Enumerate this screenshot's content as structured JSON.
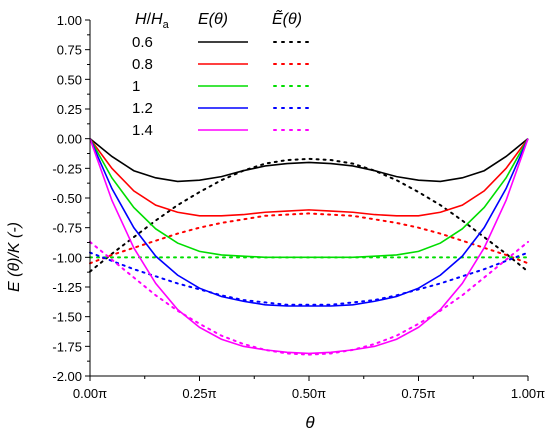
{
  "chart_data": {
    "type": "line",
    "xlabel": "θ",
    "ylabel": "E (θ)/K (-)",
    "xlim": [
      0,
      1
    ],
    "ylim": [
      -2.0,
      1.0
    ],
    "x_ticks": [
      0,
      0.25,
      0.5,
      0.75,
      1.0
    ],
    "x_tick_labels": [
      "0.00π",
      "0.25π",
      "0.50π",
      "0.75π",
      "1.00π"
    ],
    "y_ticks": [
      1.0,
      0.75,
      0.5,
      0.25,
      0.0,
      -0.25,
      -0.5,
      -0.75,
      -1.0,
      -1.25,
      -1.5,
      -1.75,
      -2.0
    ],
    "y_tick_labels": [
      "1.00",
      "0.75",
      "0.50",
      "0.25",
      "0.00",
      "-0.25",
      "-0.50",
      "-0.75",
      "-1.00",
      "-1.25",
      "-1.50",
      "-1.75",
      "-2.00"
    ],
    "legend": {
      "position": "top-left",
      "header_param": "H/Ha",
      "header_solid": "E(θ)",
      "header_dotted": "Ẽ(θ)"
    },
    "x": [
      0.0,
      0.05,
      0.1,
      0.15,
      0.2,
      0.25,
      0.3,
      0.35,
      0.4,
      0.45,
      0.5,
      0.55,
      0.6,
      0.65,
      0.7,
      0.75,
      0.8,
      0.85,
      0.9,
      0.95,
      1.0
    ],
    "series": [
      {
        "name": "0.6",
        "color": "#000000",
        "solid": [
          0.0,
          -0.15,
          -0.27,
          -0.33,
          -0.36,
          -0.35,
          -0.32,
          -0.27,
          -0.23,
          -0.21,
          -0.2,
          -0.21,
          -0.23,
          -0.27,
          -0.32,
          -0.35,
          -0.36,
          -0.33,
          -0.27,
          -0.15,
          0.0
        ],
        "dotted": [
          -1.12,
          -0.97,
          -0.83,
          -0.69,
          -0.56,
          -0.45,
          -0.35,
          -0.27,
          -0.21,
          -0.18,
          -0.17,
          -0.18,
          -0.21,
          -0.27,
          -0.35,
          -0.45,
          -0.56,
          -0.69,
          -0.83,
          -0.97,
          -1.12
        ]
      },
      {
        "name": "0.8",
        "color": "#ff0000",
        "solid": [
          0.0,
          -0.25,
          -0.44,
          -0.56,
          -0.62,
          -0.65,
          -0.65,
          -0.64,
          -0.62,
          -0.61,
          -0.6,
          -0.61,
          -0.62,
          -0.64,
          -0.65,
          -0.65,
          -0.62,
          -0.56,
          -0.44,
          -0.25,
          0.0
        ],
        "dotted": [
          -1.05,
          -0.98,
          -0.92,
          -0.86,
          -0.8,
          -0.75,
          -0.71,
          -0.68,
          -0.65,
          -0.64,
          -0.63,
          -0.64,
          -0.65,
          -0.68,
          -0.71,
          -0.75,
          -0.8,
          -0.86,
          -0.92,
          -0.98,
          -1.05
        ]
      },
      {
        "name": "1",
        "color": "#00dd00",
        "solid": [
          0.0,
          -0.33,
          -0.58,
          -0.76,
          -0.88,
          -0.95,
          -0.98,
          -0.99,
          -1.0,
          -1.0,
          -1.0,
          -1.0,
          -1.0,
          -0.99,
          -0.98,
          -0.95,
          -0.88,
          -0.76,
          -0.58,
          -0.33,
          0.0
        ],
        "dotted": [
          -1.0,
          -1.0,
          -1.0,
          -1.0,
          -1.0,
          -1.0,
          -1.0,
          -1.0,
          -1.0,
          -1.0,
          -1.0,
          -1.0,
          -1.0,
          -1.0,
          -1.0,
          -1.0,
          -1.0,
          -1.0,
          -1.0,
          -1.0,
          -1.0
        ]
      },
      {
        "name": "1.2",
        "color": "#0000ff",
        "solid": [
          0.0,
          -0.42,
          -0.75,
          -0.99,
          -1.15,
          -1.26,
          -1.33,
          -1.37,
          -1.4,
          -1.41,
          -1.41,
          -1.41,
          -1.4,
          -1.37,
          -1.33,
          -1.26,
          -1.15,
          -0.99,
          -0.75,
          -0.42,
          0.0
        ],
        "dotted": [
          -0.96,
          -1.03,
          -1.1,
          -1.16,
          -1.22,
          -1.27,
          -1.32,
          -1.36,
          -1.38,
          -1.4,
          -1.4,
          -1.4,
          -1.38,
          -1.36,
          -1.32,
          -1.27,
          -1.22,
          -1.16,
          -1.1,
          -1.03,
          -0.96
        ]
      },
      {
        "name": "1.4",
        "color": "#ff00ff",
        "solid": [
          0.0,
          -0.52,
          -0.92,
          -1.22,
          -1.44,
          -1.59,
          -1.69,
          -1.75,
          -1.78,
          -1.8,
          -1.81,
          -1.8,
          -1.78,
          -1.75,
          -1.69,
          -1.59,
          -1.44,
          -1.22,
          -0.92,
          -0.52,
          0.0
        ],
        "dotted": [
          -0.87,
          -1.02,
          -1.17,
          -1.32,
          -1.45,
          -1.56,
          -1.66,
          -1.73,
          -1.78,
          -1.81,
          -1.82,
          -1.81,
          -1.78,
          -1.73,
          -1.66,
          -1.56,
          -1.45,
          -1.32,
          -1.17,
          -1.02,
          -0.87
        ]
      }
    ]
  }
}
